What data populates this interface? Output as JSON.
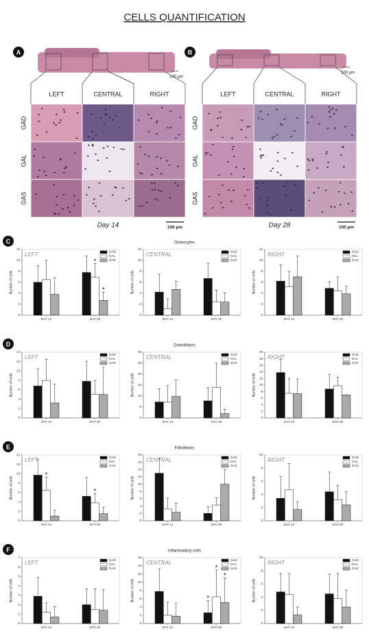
{
  "title": "CELLS QUANTIFICATION",
  "micrographs": [
    {
      "letter": "A",
      "strip_scale": "100 µm",
      "columns": [
        "LEFT",
        "CENTRAL",
        "RIGHT"
      ],
      "rows": [
        "GAD",
        "GAL",
        "GAS"
      ],
      "caption": "Day 14",
      "scale": "100 µm"
    },
    {
      "letter": "B",
      "strip_scale": "100 µm",
      "columns": [
        "LEFT",
        "CENTRAL",
        "RIGHT"
      ],
      "rows": [
        "GAD",
        "GAL",
        "GAS"
      ],
      "caption": "Day 28",
      "scale": "100 µm"
    }
  ],
  "rows": [
    {
      "letter": "C",
      "title": "Osteocytes"
    },
    {
      "letter": "D",
      "title": "Osteoblasts"
    },
    {
      "letter": "E",
      "title": "Fibloblasts"
    },
    {
      "letter": "F",
      "title": "Inflammatory cells"
    }
  ],
  "chart_data": [
    {
      "type": "bar",
      "title": "LEFT",
      "categories": [
        "DAY 14",
        "DAY 28"
      ],
      "ylabel": "Number of cells",
      "ylim": [
        0,
        12
      ],
      "yticks": [
        0,
        2,
        4,
        6,
        8,
        10,
        12
      ],
      "series": [
        {
          "name": "GAD",
          "color": "#111111",
          "values": [
            6,
            7.8
          ],
          "errors": [
            3,
            3
          ]
        },
        {
          "name": "GAL",
          "color": "#ffffff",
          "values": [
            6.5,
            6.9
          ],
          "errors": [
            3.5,
            2.5
          ],
          "markers": [
            null,
            "*"
          ]
        },
        {
          "name": "GAS",
          "color": "#aaaaaa",
          "values": [
            3.8,
            2.7
          ],
          "errors": [
            3,
            1.5
          ],
          "markers": [
            null,
            "*"
          ]
        }
      ]
    },
    {
      "type": "bar",
      "title": "CENTRAL",
      "categories": [
        "DAY 14",
        "DAY 28"
      ],
      "ylabel": "Number of cells",
      "ylim": [
        0,
        12
      ],
      "yticks": [
        0,
        2,
        4,
        6,
        8,
        10,
        12
      ],
      "series": [
        {
          "name": "GAD",
          "color": "#111111",
          "values": [
            4.2,
            6.7
          ],
          "errors": [
            3.3,
            2.8
          ]
        },
        {
          "name": "GAL",
          "color": "#ffffff",
          "values": [
            1.2,
            2.4
          ],
          "errors": [
            1.8,
            2.2
          ]
        },
        {
          "name": "GAS",
          "color": "#aaaaaa",
          "values": [
            4.7,
            2.4
          ],
          "errors": [
            1.5,
            1.7
          ]
        }
      ]
    },
    {
      "type": "bar",
      "title": "RIGHT",
      "categories": [
        "DAY 14",
        "DAY 28"
      ],
      "ylabel": "Number of cells",
      "ylim": [
        0,
        12
      ],
      "yticks": [
        0,
        2,
        4,
        6,
        8,
        10,
        12
      ],
      "series": [
        {
          "name": "GAD",
          "color": "#111111",
          "values": [
            6.2,
            4.9
          ],
          "errors": [
            3,
            1.2
          ]
        },
        {
          "name": "GAL",
          "color": "#ffffff",
          "values": [
            5.2,
            4.4
          ],
          "errors": [
            2.8,
            2.6
          ]
        },
        {
          "name": "GAS",
          "color": "#aaaaaa",
          "values": [
            7,
            3.9
          ],
          "errors": [
            3.8,
            1.4
          ]
        }
      ]
    },
    {
      "type": "bar",
      "title": "LEFT",
      "categories": [
        "DAY 14",
        "DAY 28"
      ],
      "ylabel": "Number of cells",
      "ylim": [
        0,
        14
      ],
      "yticks": [
        0,
        2,
        4,
        6,
        8,
        10,
        12,
        14
      ],
      "series": [
        {
          "name": "GAD",
          "color": "#111111",
          "values": [
            6.8,
            7.8
          ],
          "errors": [
            3.7,
            4.3
          ]
        },
        {
          "name": "GAL",
          "color": "#ffffff",
          "values": [
            8,
            5
          ],
          "errors": [
            4.5,
            3
          ]
        },
        {
          "name": "GAS",
          "color": "#aaaaaa",
          "values": [
            3.2,
            5
          ],
          "errors": [
            4,
            5.8
          ]
        }
      ]
    },
    {
      "type": "bar",
      "title": "CENTRAL",
      "categories": [
        "DAY 14",
        "DAY 28"
      ],
      "ylabel": "Number of cells",
      "ylim": [
        0,
        30
      ],
      "yticks": [
        0,
        5,
        10,
        15,
        20,
        25,
        30
      ],
      "series": [
        {
          "name": "GAD",
          "color": "#111111",
          "values": [
            7.3,
            7.8
          ],
          "errors": [
            6,
            6
          ]
        },
        {
          "name": "GAL",
          "color": "#ffffff",
          "values": [
            7.2,
            14
          ],
          "errors": [
            7.5,
            11
          ]
        },
        {
          "name": "GAS",
          "color": "#aaaaaa",
          "values": [
            9.8,
            2
          ],
          "errors": [
            7.5,
            2
          ]
        }
      ]
    },
    {
      "type": "bar",
      "title": "RIGHT",
      "categories": [
        "DAY 14",
        "DAY 28"
      ],
      "ylabel": "Number of cells",
      "ylim": [
        0,
        20
      ],
      "yticks": [
        0,
        2,
        4,
        6,
        8,
        10,
        12,
        14,
        16,
        18,
        20
      ],
      "series": [
        {
          "name": "GAD",
          "color": "#111111",
          "values": [
            13.8,
            8.8
          ],
          "errors": [
            4,
            4.5
          ]
        },
        {
          "name": "GAL",
          "color": "#ffffff",
          "values": [
            7.5,
            9.8
          ],
          "errors": [
            4.5,
            2.6
          ]
        },
        {
          "name": "GAS",
          "color": "#aaaaaa",
          "values": [
            7.4,
            7
          ],
          "errors": [
            4.5,
            0
          ]
        }
      ]
    },
    {
      "type": "bar",
      "title": "LEFT",
      "categories": [
        "DAY 14",
        "DAY 28"
      ],
      "ylabel": "Number of cells",
      "ylim": [
        0,
        14
      ],
      "yticks": [
        0,
        2,
        4,
        6,
        8,
        10,
        12,
        14
      ],
      "series": [
        {
          "name": "GAD",
          "color": "#111111",
          "values": [
            9.7,
            5.2
          ],
          "errors": [
            3.3,
            4
          ]
        },
        {
          "name": "GAL",
          "color": "#ffffff",
          "values": [
            6.5,
            3.8
          ],
          "errors": [
            2.8,
            2
          ],
          "markers": [
            "*",
            "*"
          ]
        },
        {
          "name": "GAS",
          "color": "#aaaaaa",
          "values": [
            1,
            1.5
          ],
          "errors": [
            1.3,
            1.4
          ]
        }
      ]
    },
    {
      "type": "bar",
      "title": "CENTRAL",
      "categories": [
        "DAY 14",
        "DAY 28"
      ],
      "ylabel": "Number of cells",
      "ylim": [
        0,
        18
      ],
      "yticks": [
        0,
        2,
        4,
        6,
        8,
        10,
        12,
        14,
        16,
        18
      ],
      "series": [
        {
          "name": "GAD",
          "color": "#111111",
          "values": [
            13,
            2
          ],
          "errors": [
            4,
            1.8
          ]
        },
        {
          "name": "GAL",
          "color": "#ffffff",
          "values": [
            3.2,
            4.3
          ],
          "errors": [
            3,
            2
          ]
        },
        {
          "name": "GAS",
          "color": "#aaaaaa",
          "values": [
            2.3,
            10
          ],
          "errors": [
            2.5,
            4
          ]
        }
      ]
    },
    {
      "type": "bar",
      "title": "RIGHT",
      "categories": [
        "DAY 14",
        "DAY 28"
      ],
      "ylabel": "Number of cells",
      "ylim": [
        0,
        10
      ],
      "yticks": [
        0,
        2,
        4,
        6,
        8,
        10
      ],
      "series": [
        {
          "name": "GAD",
          "color": "#111111",
          "values": [
            3.4,
            4.4
          ],
          "errors": [
            3.3,
            3
          ]
        },
        {
          "name": "GAL",
          "color": "#ffffff",
          "values": [
            4.7,
            3.2
          ],
          "errors": [
            4,
            2.2
          ]
        },
        {
          "name": "GAS",
          "color": "#aaaaaa",
          "values": [
            1.7,
            2.4
          ],
          "errors": [
            1.2,
            2
          ]
        }
      ]
    },
    {
      "type": "bar",
      "title": "LEFT",
      "categories": [
        "DAY 14",
        "DAY 28"
      ],
      "ylabel": "Number of cells",
      "ylim": [
        0,
        7
      ],
      "yticks": [
        0,
        1,
        2,
        3,
        4,
        5,
        6,
        7
      ],
      "series": [
        {
          "name": "GAD",
          "color": "#111111",
          "values": [
            2.9,
            2
          ],
          "errors": [
            2,
            1.7
          ]
        },
        {
          "name": "GAL",
          "color": "#ffffff",
          "values": [
            1.2,
            1.5
          ],
          "errors": [
            1,
            2.2
          ]
        },
        {
          "name": "GAS",
          "color": "#aaaaaa",
          "values": [
            0.7,
            1.4
          ],
          "errors": [
            1.1,
            2.2
          ]
        }
      ]
    },
    {
      "type": "bar",
      "title": "CENTRAL",
      "categories": [
        "DAY 14",
        "DAY 28"
      ],
      "ylabel": "Number of cells",
      "ylim": [
        0,
        16
      ],
      "yticks": [
        0,
        2,
        4,
        6,
        8,
        10,
        12,
        14,
        16
      ],
      "series": [
        {
          "name": "GAD",
          "color": "#111111",
          "values": [
            7.8,
            2.6
          ],
          "errors": [
            5.5,
            3
          ],
          "markers": [
            null,
            "*"
          ]
        },
        {
          "name": "GAL",
          "color": "#ffffff",
          "values": [
            2,
            6.5
          ],
          "errors": [
            3.2,
            6.5
          ],
          "markers": [
            null,
            "*"
          ]
        },
        {
          "name": "GAS",
          "color": "#aaaaaa",
          "values": [
            1.8,
            5.1
          ],
          "errors": [
            3.2,
            6
          ],
          "markers": [
            null,
            "*"
          ]
        }
      ]
    },
    {
      "type": "bar",
      "title": "RIGHT",
      "categories": [
        "DAY 14",
        "DAY 28"
      ],
      "ylabel": "Number of cells",
      "ylim": [
        0,
        10
      ],
      "yticks": [
        0,
        2,
        4,
        6,
        8,
        10
      ],
      "series": [
        {
          "name": "GAD",
          "color": "#111111",
          "values": [
            4.8,
            4.5
          ],
          "errors": [
            2.8,
            3
          ]
        },
        {
          "name": "GAL",
          "color": "#ffffff",
          "values": [
            4.4,
            3.8
          ],
          "errors": [
            3.2,
            3.8
          ]
        },
        {
          "name": "GAS",
          "color": "#aaaaaa",
          "values": [
            1.3,
            2.5
          ],
          "errors": [
            1.2,
            2.6
          ]
        }
      ]
    }
  ]
}
